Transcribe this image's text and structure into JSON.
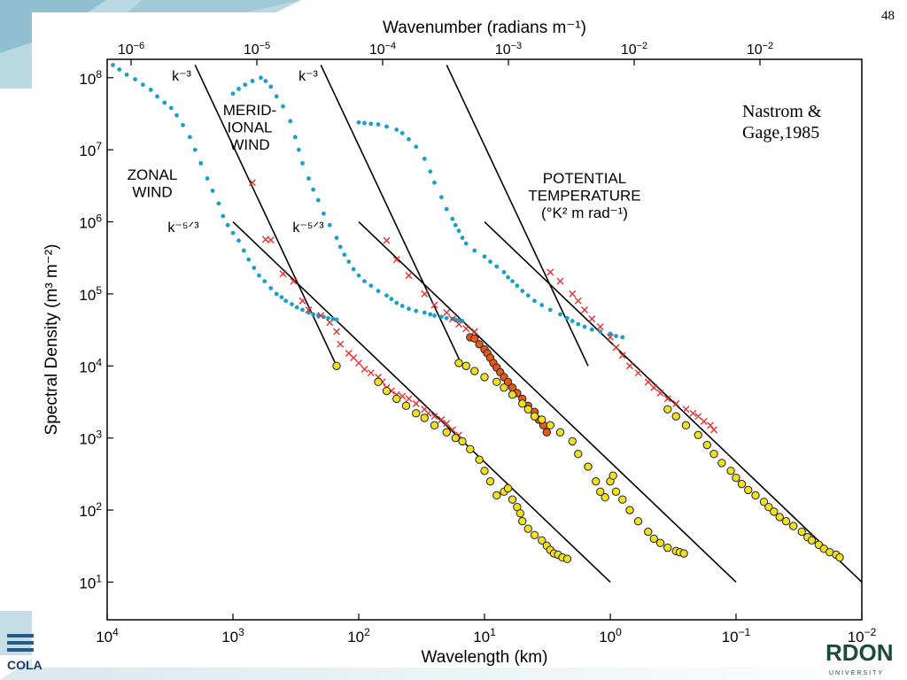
{
  "slide": {
    "number": "48",
    "citation_line1": "Nastrom &",
    "citation_line2": "Gage,1985",
    "logo_left_text": "COLA",
    "logo_right_text": "RDON",
    "logo_right_sub": "UNIVERSITY"
  },
  "chart_data": {
    "type": "scatter",
    "title": "",
    "xlabel": "Wavelength (km)",
    "x2label": "Wavenumber (radians m⁻¹)",
    "ylabel": "Spectral Density (m³ m⁻²)",
    "xscale": "log",
    "yscale": "log",
    "xlim_km": [
      10000,
      0.01
    ],
    "ylim": [
      3,
      180000000
    ],
    "x_ticks": [
      "10^4",
      "10^3",
      "10^2",
      "10^1",
      "10^0",
      "10^-1",
      "10^-2"
    ],
    "x2_ticks": [
      "10^-6",
      "10^-5",
      "10^-4",
      "10^-3",
      "10^-2",
      "10^-2"
    ],
    "y_ticks": [
      "10^8",
      "10^7",
      "10^6",
      "10^5",
      "10^4",
      "10^3",
      "10^2",
      "10^1"
    ],
    "panel_labels": {
      "zonal": [
        "ZONAL",
        "WIND"
      ],
      "meridional": [
        "MERID-",
        "IONAL",
        "WIND"
      ],
      "potential": [
        "POTENTIAL",
        "TEMPERATURE",
        "(°K² m rad⁻¹)"
      ]
    },
    "slope_labels": {
      "k3": "k⁻³",
      "k53": "k⁻⁵ᐟ³"
    },
    "reference_lines": [
      {
        "name": "zonal k-3",
        "x": [
          2000,
          150
        ],
        "y": [
          150000000,
          10000
        ]
      },
      {
        "name": "zonal k-5/3",
        "x": [
          1000,
          1
        ],
        "y": [
          1000000,
          10
        ]
      },
      {
        "name": "meridional k-3",
        "x": [
          200,
          15
        ],
        "y": [
          150000000,
          10000
        ]
      },
      {
        "name": "meridional k-5/3",
        "x": [
          100,
          0.1
        ],
        "y": [
          1000000,
          10
        ]
      },
      {
        "name": "potential temperature k-3",
        "x": [
          20,
          1.5
        ],
        "y": [
          150000000,
          10000
        ]
      },
      {
        "name": "potential temperature k-5/3",
        "x": [
          10,
          0.01
        ],
        "y": [
          1000000,
          10
        ]
      }
    ],
    "series": [
      {
        "name": "ZONAL WIND",
        "marker": "dot",
        "color": "#1aa0c8",
        "x": [
          9000,
          8000,
          7000,
          6000,
          5200,
          4500,
          4000,
          3500,
          3100,
          2800,
          2500,
          2200,
          2000,
          1800,
          1600,
          1450,
          1300,
          1200,
          1100,
          1000,
          900,
          820,
          750,
          680,
          620,
          560,
          500,
          450,
          410,
          380,
          340,
          310,
          280,
          250,
          230,
          210,
          190,
          175,
          160,
          150
        ],
        "y": [
          150000000,
          130000000,
          110000000,
          95000000,
          80000000,
          68000000,
          55000000,
          45000000,
          38000000,
          30000000,
          22000000,
          15000000,
          10000000,
          6500000,
          4000000,
          2700000,
          1800000,
          1200000,
          900000,
          700000,
          550000,
          400000,
          300000,
          230000,
          180000,
          150000,
          120000,
          100000,
          90000,
          80000,
          72000,
          65000,
          60000,
          55000,
          52000,
          50000,
          48000,
          46000,
          45000,
          44000
        ]
      },
      {
        "name": "ZONAL WIND",
        "marker": "cross",
        "color": "#e83030",
        "x": [
          700,
          550,
          500,
          400,
          330,
          280,
          250,
          200,
          170,
          150,
          140,
          120,
          110,
          100,
          90,
          80,
          70,
          65,
          60,
          55,
          50,
          45,
          40,
          35,
          30,
          28,
          25,
          22,
          20,
          18,
          16
        ],
        "y": [
          3500000,
          570000,
          560000,
          190000,
          150000,
          80000,
          60000,
          50000,
          40000,
          30000,
          20000,
          15000,
          13000,
          11000,
          9000,
          8000,
          7000,
          6000,
          5000,
          4500,
          4000,
          3800,
          3500,
          3000,
          2500,
          2200,
          2000,
          1800,
          1600,
          1300,
          1100
        ]
      },
      {
        "name": "ZONAL WIND",
        "marker": "circle",
        "color": "#f0e020",
        "x": [
          150,
          70,
          60,
          50,
          42,
          35,
          30,
          25,
          20,
          17,
          15,
          13,
          11,
          10,
          9,
          8,
          7,
          6.5,
          6,
          5.5,
          5.2,
          5,
          4.5,
          4,
          3.5,
          3.2,
          3,
          2.8,
          2.6,
          2.4,
          2.2
        ],
        "y": [
          10000,
          6000,
          4500,
          3500,
          2800,
          2200,
          1900,
          1500,
          1200,
          1000,
          900,
          700,
          500,
          350,
          250,
          160,
          180,
          200,
          140,
          110,
          90,
          70,
          55,
          45,
          38,
          32,
          28,
          25,
          24,
          22,
          21
        ]
      },
      {
        "name": "MERIDIONAL WIND",
        "marker": "dot",
        "color": "#1aa0c8",
        "x": [
          1000,
          900,
          800,
          700,
          600,
          550,
          500,
          450,
          400,
          350,
          320,
          300,
          280,
          250,
          230,
          210,
          190,
          170,
          150,
          140,
          130,
          120,
          110,
          100,
          90,
          80,
          70,
          60,
          55,
          50,
          45,
          40,
          35,
          30,
          27,
          25,
          22,
          20,
          18,
          17,
          16,
          15
        ],
        "y": [
          60000000,
          70000000,
          80000000,
          90000000,
          100000000,
          90000000,
          75000000,
          55000000,
          40000000,
          25000000,
          15000000,
          10000000,
          6500000,
          4000000,
          2800000,
          2000000,
          1300000,
          900000,
          600000,
          450000,
          350000,
          280000,
          220000,
          180000,
          150000,
          130000,
          110000,
          95000,
          85000,
          75000,
          68000,
          62000,
          58000,
          55000,
          52000,
          50000,
          48000,
          46000,
          45000,
          44000,
          43000,
          42000
        ]
      },
      {
        "name": "MERIDIONAL WIND",
        "marker": "cross",
        "color": "#e83030",
        "x": [
          60,
          50,
          40,
          30,
          25,
          20,
          18,
          16,
          14,
          12
        ],
        "y": [
          550000,
          300000,
          180000,
          100000,
          70000,
          55000,
          45000,
          38000,
          33000,
          30000
        ]
      },
      {
        "name": "MERIDIONAL WIND",
        "marker": "circle",
        "color": "#e85a10",
        "x": [
          13,
          12,
          11,
          10,
          9.5,
          9,
          8.5,
          8,
          7.5,
          7,
          6.5,
          6,
          5.5,
          5,
          4.5,
          4,
          3.7,
          3.4,
          3.2
        ],
        "y": [
          25000,
          24000,
          20000,
          17000,
          15000,
          13000,
          11000,
          9500,
          8200,
          7000,
          6000,
          5000,
          4200,
          3500,
          2800,
          2300,
          1800,
          1500,
          1200
        ]
      },
      {
        "name": "MERIDIONAL WIND",
        "marker": "circle",
        "color": "#f0e020",
        "x": [
          16,
          14,
          12,
          10,
          8,
          7,
          6,
          5,
          4.5,
          4,
          3.5,
          3,
          2.5,
          2,
          1.8,
          1.5,
          1.3,
          1.2,
          1.1,
          1,
          0.95,
          0.9,
          0.8,
          0.7,
          0.6,
          0.5,
          0.45,
          0.4,
          0.35,
          0.3,
          0.28,
          0.26
        ],
        "y": [
          11000,
          10000,
          8500,
          7000,
          6000,
          5000,
          4000,
          3000,
          2500,
          2000,
          1800,
          1500,
          1200,
          900,
          600,
          400,
          250,
          180,
          150,
          250,
          300,
          180,
          140,
          100,
          70,
          50,
          40,
          35,
          30,
          27,
          26,
          25
        ]
      },
      {
        "name": "POTENTIAL TEMPERATURE",
        "marker": "dot",
        "color": "#1aa0c8",
        "x": [
          100,
          90,
          80,
          70,
          60,
          50,
          45,
          40,
          35,
          30,
          27,
          25,
          22,
          20,
          18,
          17,
          16,
          15,
          14,
          12,
          10,
          9,
          8,
          7,
          6.5,
          6,
          5.5,
          5,
          4.5,
          4,
          3.5,
          3,
          2.5,
          2.2,
          2,
          1.8,
          1.6,
          1.4,
          1.2,
          1,
          0.9,
          0.8
        ],
        "y": [
          24000000,
          23500000,
          23000000,
          22500000,
          21000000,
          19000000,
          17000000,
          14000000,
          11000000,
          7500000,
          5000000,
          3500000,
          2200000,
          1500000,
          1100000,
          900000,
          750000,
          600000,
          500000,
          400000,
          330000,
          280000,
          240000,
          200000,
          170000,
          150000,
          130000,
          110000,
          95000,
          80000,
          70000,
          60000,
          52000,
          46000,
          42000,
          38000,
          35000,
          32000,
          30000,
          28000,
          26000,
          25000
        ]
      },
      {
        "name": "POTENTIAL TEMPERATURE",
        "marker": "cross",
        "color": "#e83030",
        "x": [
          3,
          2.5,
          2,
          1.8,
          1.6,
          1.4,
          1.2,
          1,
          0.9,
          0.8,
          0.7,
          0.6,
          0.5,
          0.45,
          0.4,
          0.35,
          0.3,
          0.25,
          0.22,
          0.2,
          0.18,
          0.16,
          0.15
        ],
        "y": [
          200000,
          150000,
          100000,
          80000,
          60000,
          45000,
          35000,
          25000,
          18000,
          14000,
          10000,
          8000,
          6000,
          5000,
          4200,
          3500,
          3000,
          2500,
          2200,
          2000,
          1700,
          1500,
          1300
        ]
      },
      {
        "name": "POTENTIAL TEMPERATURE",
        "marker": "circle",
        "color": "#f0e020",
        "x": [
          0.35,
          0.3,
          0.25,
          0.2,
          0.17,
          0.15,
          0.13,
          0.11,
          0.1,
          0.09,
          0.08,
          0.07,
          0.06,
          0.055,
          0.05,
          0.045,
          0.04,
          0.035,
          0.03,
          0.027,
          0.025,
          0.022,
          0.02,
          0.018,
          0.016,
          0.015
        ],
        "y": [
          2500,
          2000,
          1500,
          1100,
          800,
          600,
          450,
          350,
          280,
          230,
          190,
          160,
          130,
          110,
          95,
          80,
          70,
          60,
          50,
          42,
          38,
          33,
          29,
          26,
          24,
          22
        ]
      }
    ]
  }
}
